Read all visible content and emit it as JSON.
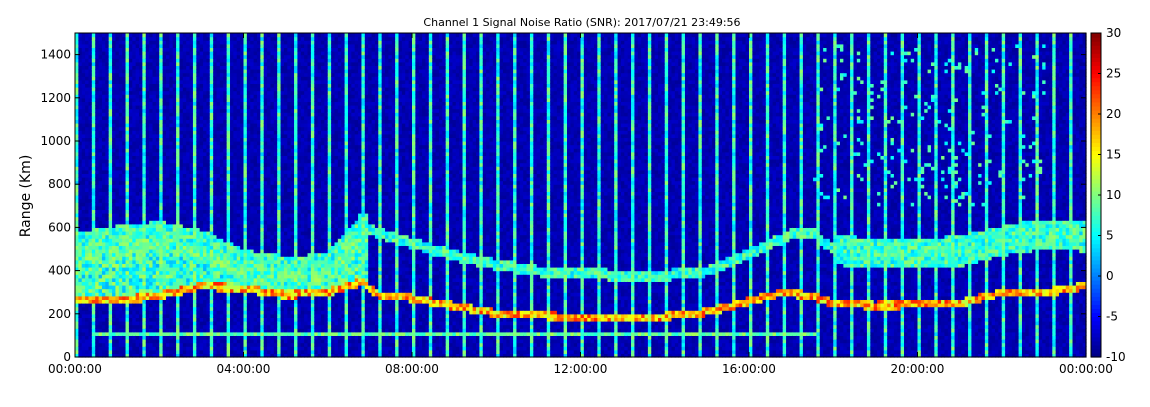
{
  "chart_data": {
    "type": "heatmap",
    "title": "Channel 1 Signal Noise Ratio (SNR): 2017/07/21 23:49:56",
    "ylabel": "Range (Km)",
    "xlabel": "",
    "x_ticks": [
      "00:00:00",
      "04:00:00",
      "08:00:00",
      "12:00:00",
      "16:00:00",
      "20:00:00",
      "00:00:00"
    ],
    "x_range_hours": [
      0,
      24
    ],
    "y_ticks": [
      0,
      200,
      400,
      600,
      800,
      1000,
      1200,
      1400
    ],
    "ylim": [
      0,
      1500
    ],
    "colorbar": {
      "ticks": [
        30,
        25,
        20,
        15,
        10,
        5,
        0,
        -5,
        -10
      ],
      "range": [
        -10,
        30
      ],
      "colormap": "jet"
    },
    "grid": false,
    "vertical_stripe_period_hours": 0.4,
    "layers": [
      {
        "name": "low-E layer",
        "start_h": 0.5,
        "end_h": 17.6,
        "range_km": 110,
        "snr_db": 8
      },
      {
        "name": "F layer lower trace",
        "points_h_km": [
          [
            0,
            260
          ],
          [
            1,
            265
          ],
          [
            2,
            285
          ],
          [
            3,
            330
          ],
          [
            4,
            320
          ],
          [
            5,
            290
          ],
          [
            6,
            300
          ],
          [
            6.8,
            350
          ],
          [
            7.2,
            290
          ],
          [
            8,
            275
          ],
          [
            9,
            240
          ],
          [
            10,
            205
          ],
          [
            11,
            195
          ],
          [
            12,
            185
          ],
          [
            13,
            180
          ],
          [
            14,
            190
          ],
          [
            15,
            210
          ],
          [
            16,
            260
          ],
          [
            16.8,
            300
          ],
          [
            17.5,
            285
          ],
          [
            18,
            250
          ],
          [
            19,
            240
          ],
          [
            20,
            245
          ],
          [
            21,
            250
          ],
          [
            22,
            300
          ],
          [
            23,
            300
          ],
          [
            24,
            330
          ]
        ],
        "snr_db": 20
      },
      {
        "name": "F layer upper trace",
        "points_h_km": [
          [
            0,
            510
          ],
          [
            1,
            540
          ],
          [
            2,
            560
          ],
          [
            3,
            520
          ],
          [
            4,
            430
          ],
          [
            5,
            400
          ],
          [
            6,
            410
          ],
          [
            6.8,
            600
          ],
          [
            7.5,
            560
          ],
          [
            8,
            530
          ],
          [
            9,
            470
          ],
          [
            10,
            430
          ],
          [
            11,
            400
          ],
          [
            12,
            390
          ],
          [
            13,
            380
          ],
          [
            14,
            380
          ],
          [
            15,
            400
          ],
          [
            16,
            480
          ],
          [
            17,
            570
          ],
          [
            17.5,
            580
          ],
          [
            18,
            500
          ],
          [
            19,
            480
          ],
          [
            20,
            485
          ],
          [
            21,
            490
          ],
          [
            22,
            540
          ],
          [
            23,
            570
          ],
          [
            24,
            560
          ]
        ],
        "snr_db": 9
      },
      {
        "name": "spread echoes",
        "start_h": 17.5,
        "end_h": 23,
        "range_km_min": 700,
        "range_km_max": 1450,
        "snr_db": 4
      }
    ]
  }
}
